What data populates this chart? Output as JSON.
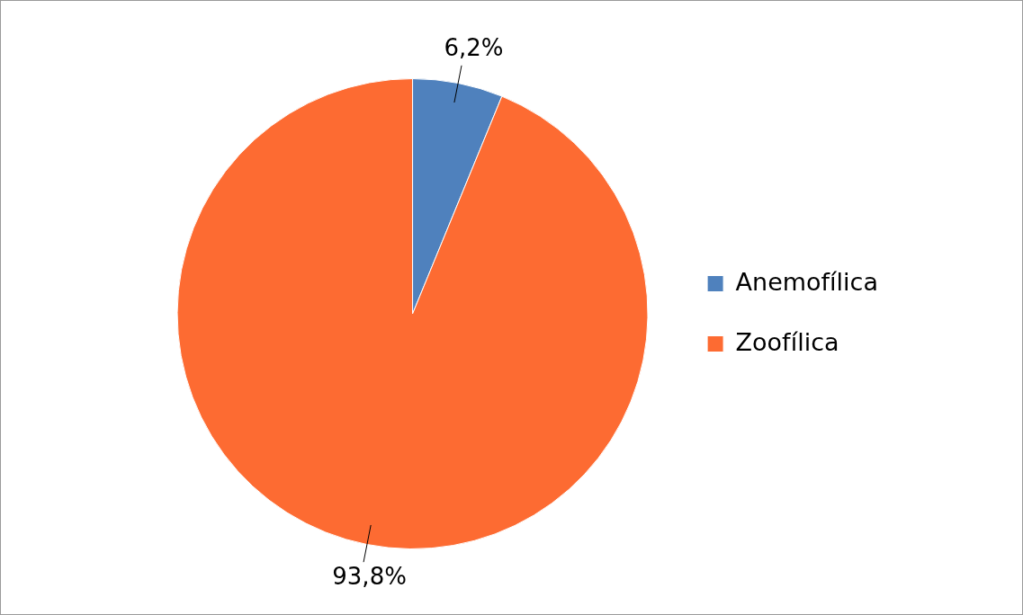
{
  "chart_data": {
    "type": "pie",
    "categories": [
      "Anemofílica",
      "Zoofílica"
    ],
    "values": [
      6.2,
      93.8
    ],
    "colors": [
      "#4f81bd",
      "#fd6b32"
    ],
    "value_labels": [
      "6,2%",
      "93,8%"
    ],
    "legend": "right"
  }
}
